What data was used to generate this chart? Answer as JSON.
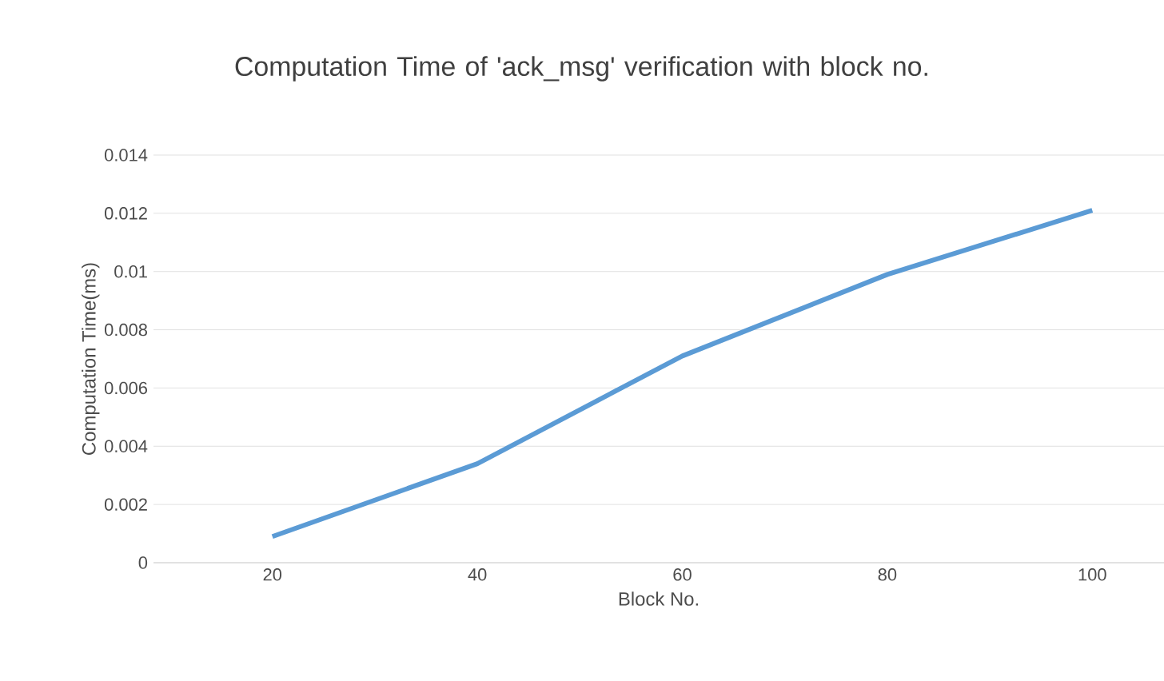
{
  "chart_data": {
    "type": "line",
    "title": "Computation Time of 'ack_msg' verification with block no.",
    "xlabel": "Block No.",
    "ylabel": "Computation Time(ms)",
    "categories": [
      "20",
      "40",
      "60",
      "80",
      "100"
    ],
    "series": [
      {
        "color": "#5b9bd5",
        "values": [
          0.0009,
          0.0034,
          0.0071,
          0.0099,
          0.0121
        ]
      }
    ],
    "ylim": [
      0,
      0.014
    ],
    "yticks": [
      0,
      0.002,
      0.004,
      0.006,
      0.008,
      0.01,
      0.012,
      0.014
    ],
    "grid": "y",
    "marker": "none",
    "line_style": "solid"
  }
}
